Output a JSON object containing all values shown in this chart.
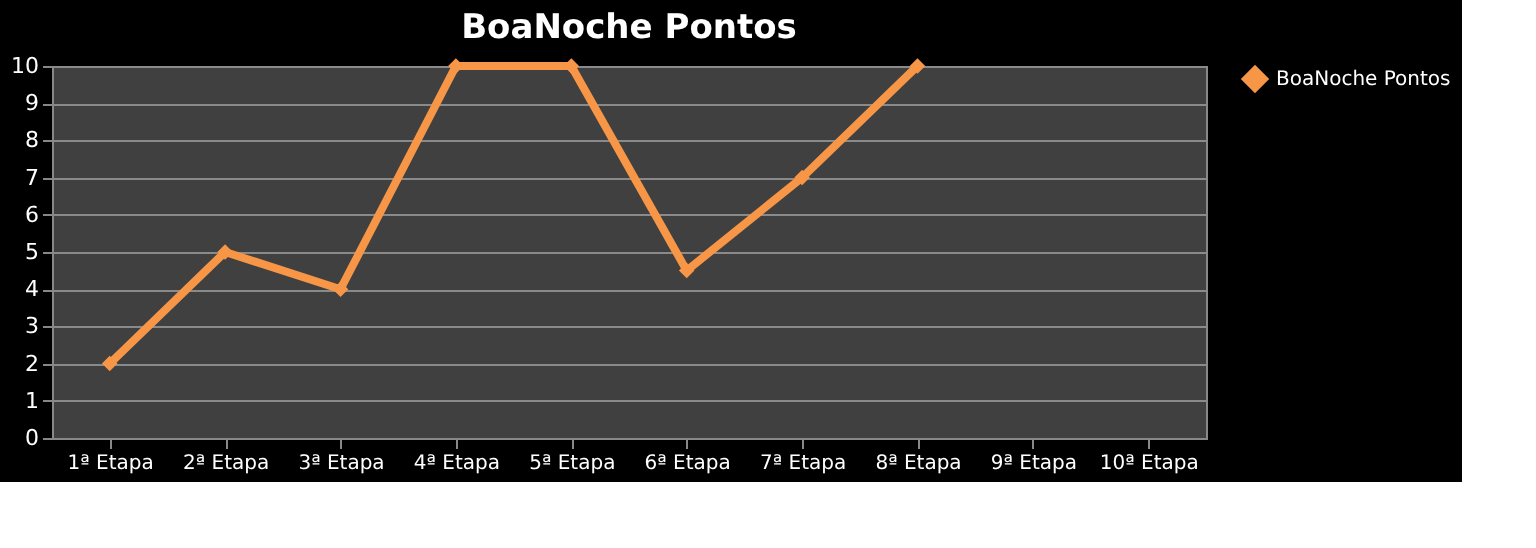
{
  "chart_data": {
    "type": "line",
    "title": "BoaNoche Pontos",
    "categories": [
      "1ª Etapa",
      "2ª Etapa",
      "3ª Etapa",
      "4ª Etapa",
      "5ª Etapa",
      "6ª Etapa",
      "7ª Etapa",
      "8ª Etapa",
      "9ª Etapa",
      "10ª Etapa"
    ],
    "series": [
      {
        "name": "BoaNoche Pontos",
        "color": "#f79646",
        "values": [
          2,
          5,
          4,
          10,
          10,
          4.5,
          7,
          10,
          null,
          null
        ]
      }
    ],
    "ylim": [
      0,
      10
    ],
    "yticks": [
      0,
      1,
      2,
      3,
      4,
      5,
      6,
      7,
      8,
      9,
      10
    ],
    "grid": "y",
    "legend": "right",
    "marker": "diamond",
    "line_style": "solid"
  }
}
